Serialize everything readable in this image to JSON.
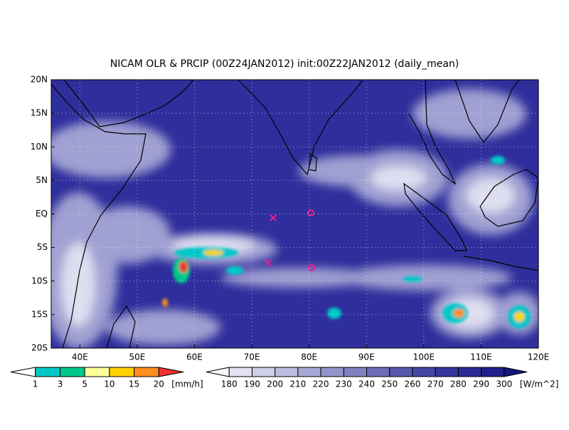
{
  "map": {
    "title": "NICAM OLR & PRCIP (00Z24JAN2012) init:00Z22JAN2012 (daily_mean)",
    "xlim": [
      35,
      120
    ],
    "ylim": [
      -20,
      20
    ],
    "grid": true,
    "background": "#2e2e9c",
    "xticks": [
      {
        "value": 40,
        "label": "40E"
      },
      {
        "value": 50,
        "label": "50E"
      },
      {
        "value": 60,
        "label": "60E"
      },
      {
        "value": 70,
        "label": "70E"
      },
      {
        "value": 80,
        "label": "80E"
      },
      {
        "value": 90,
        "label": "90E"
      },
      {
        "value": 100,
        "label": "100E"
      },
      {
        "value": 110,
        "label": "110E"
      },
      {
        "value": 120,
        "label": "120E"
      }
    ],
    "yticks": [
      {
        "value": 20,
        "label": "20N"
      },
      {
        "value": 15,
        "label": "15N"
      },
      {
        "value": 10,
        "label": "10N"
      },
      {
        "value": 5,
        "label": "5N"
      },
      {
        "value": 0,
        "label": "EQ"
      },
      {
        "value": -5,
        "label": "5S"
      },
      {
        "value": -10,
        "label": "10S"
      },
      {
        "value": -15,
        "label": "15S"
      },
      {
        "value": -20,
        "label": "20S"
      }
    ]
  },
  "colorbars": [
    {
      "levels": [
        1,
        3,
        5,
        10,
        15,
        20
      ],
      "unit": "[mm/h]",
      "colors": [
        "#ffffff",
        "#00c8c8",
        "#00c88c",
        "#ffff9c",
        "#ffd200",
        "#ff8c1e",
        "#f03232"
      ]
    },
    {
      "levels": [
        180,
        190,
        200,
        210,
        220,
        230,
        240,
        250,
        260,
        270,
        280,
        290,
        300
      ],
      "unit": "[W/m^2]",
      "colors": [
        "#f4f4fb",
        "#e2e2f2",
        "#d0d0ea",
        "#bcbce0",
        "#a8a8d6",
        "#9494cc",
        "#8080c2",
        "#6c6cb8",
        "#5858ae",
        "#4646a6",
        "#36369e",
        "#2a2a94",
        "#20208a",
        "#16167e"
      ]
    }
  ]
}
